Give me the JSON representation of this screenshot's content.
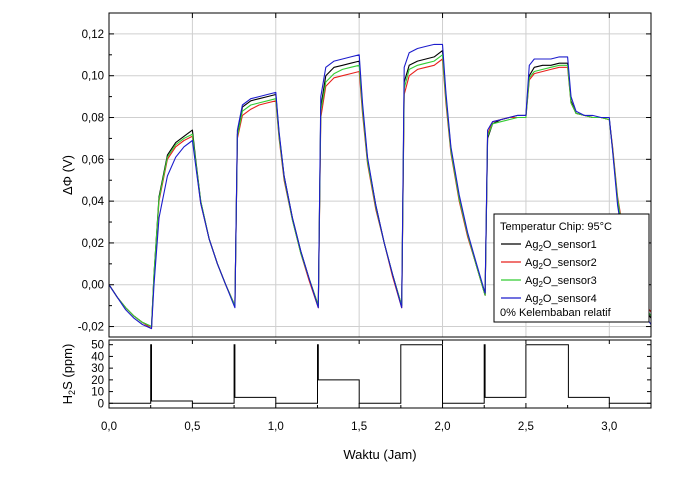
{
  "chart_data": [
    {
      "type": "line",
      "title": "",
      "xlabel": "Waktu (Jam)",
      "ylabel": "ΔΦ (V)",
      "xlim": [
        0,
        3.25
      ],
      "ylim": [
        -0.025,
        0.13
      ],
      "x_ticks": [
        0.0,
        0.5,
        1.0,
        1.5,
        2.0,
        2.5,
        3.0
      ],
      "x_tick_labels": [
        "0,0",
        "0,5",
        "1,0",
        "1,5",
        "2,0",
        "2,5",
        "3,0"
      ],
      "y_ticks": [
        -0.02,
        0.0,
        0.02,
        0.04,
        0.06,
        0.08,
        0.1,
        0.12
      ],
      "y_tick_labels": [
        "-0,02",
        "0,00",
        "0,02",
        "0,04",
        "0,06",
        "0,08",
        "0,10",
        "0,12"
      ],
      "grid": true,
      "legend_position": "bottom-right",
      "legend_title": "Temperatur Chip: 95°C",
      "legend_note": "0% Kelembaban relatif",
      "series": [
        {
          "name": "Ag2O_sensor1",
          "label_base": "Ag",
          "label_sub": "2",
          "label_rest": "O_sensor1",
          "color": "#000000",
          "x": [
            0.0,
            0.05,
            0.1,
            0.15,
            0.2,
            0.255,
            0.27,
            0.3,
            0.35,
            0.4,
            0.45,
            0.5,
            0.52,
            0.55,
            0.6,
            0.65,
            0.7,
            0.755,
            0.77,
            0.8,
            0.85,
            0.9,
            0.95,
            1.0,
            1.02,
            1.05,
            1.1,
            1.15,
            1.2,
            1.255,
            1.27,
            1.3,
            1.35,
            1.4,
            1.45,
            1.5,
            1.52,
            1.55,
            1.6,
            1.65,
            1.7,
            1.755,
            1.77,
            1.8,
            1.85,
            1.9,
            1.95,
            2.0,
            2.02,
            2.05,
            2.1,
            2.15,
            2.2,
            2.255,
            2.27,
            2.3,
            2.35,
            2.4,
            2.45,
            2.5,
            2.52,
            2.55,
            2.6,
            2.65,
            2.7,
            2.75,
            2.77,
            2.8,
            2.85,
            2.9,
            2.95,
            3.0,
            3.02,
            3.05,
            3.1,
            3.15,
            3.2,
            3.25
          ],
          "y": [
            0.0,
            -0.006,
            -0.011,
            -0.015,
            -0.018,
            -0.02,
            0.005,
            0.042,
            0.062,
            0.068,
            0.071,
            0.074,
            0.06,
            0.04,
            0.022,
            0.01,
            0.0,
            -0.01,
            0.072,
            0.085,
            0.088,
            0.089,
            0.09,
            0.091,
            0.072,
            0.052,
            0.032,
            0.016,
            0.003,
            -0.01,
            0.085,
            0.1,
            0.104,
            0.105,
            0.106,
            0.107,
            0.085,
            0.06,
            0.038,
            0.02,
            0.005,
            -0.01,
            0.097,
            0.105,
            0.107,
            0.108,
            0.109,
            0.112,
            0.09,
            0.065,
            0.042,
            0.024,
            0.01,
            -0.005,
            0.07,
            0.077,
            0.079,
            0.08,
            0.081,
            0.081,
            0.1,
            0.104,
            0.105,
            0.105,
            0.106,
            0.106,
            0.088,
            0.082,
            0.081,
            0.08,
            0.08,
            0.079,
            0.065,
            0.04,
            0.015,
            0.0,
            -0.01,
            -0.016
          ]
        },
        {
          "name": "Ag2O_sensor2",
          "label_base": "Ag",
          "label_sub": "2",
          "label_rest": "O_sensor2",
          "color": "#e8201c",
          "x": [
            0.0,
            0.05,
            0.1,
            0.15,
            0.2,
            0.255,
            0.27,
            0.3,
            0.35,
            0.4,
            0.45,
            0.5,
            0.52,
            0.55,
            0.6,
            0.65,
            0.7,
            0.755,
            0.77,
            0.8,
            0.85,
            0.9,
            0.95,
            1.0,
            1.02,
            1.05,
            1.1,
            1.15,
            1.2,
            1.255,
            1.27,
            1.3,
            1.35,
            1.4,
            1.45,
            1.5,
            1.52,
            1.55,
            1.6,
            1.65,
            1.7,
            1.755,
            1.77,
            1.8,
            1.85,
            1.9,
            1.95,
            2.0,
            2.02,
            2.05,
            2.1,
            2.15,
            2.2,
            2.255,
            2.27,
            2.3,
            2.35,
            2.4,
            2.45,
            2.5,
            2.52,
            2.55,
            2.6,
            2.65,
            2.7,
            2.75,
            2.77,
            2.8,
            2.85,
            2.9,
            2.95,
            3.0,
            3.02,
            3.05,
            3.1,
            3.15,
            3.2,
            3.25
          ],
          "y": [
            0.0,
            -0.006,
            -0.011,
            -0.015,
            -0.018,
            -0.021,
            0.004,
            0.04,
            0.06,
            0.066,
            0.069,
            0.071,
            0.058,
            0.039,
            0.022,
            0.01,
            0.0,
            -0.01,
            0.07,
            0.081,
            0.084,
            0.086,
            0.087,
            0.088,
            0.07,
            0.05,
            0.031,
            0.015,
            0.002,
            -0.011,
            0.08,
            0.095,
            0.099,
            0.1,
            0.101,
            0.102,
            0.082,
            0.058,
            0.036,
            0.02,
            0.004,
            -0.011,
            0.091,
            0.1,
            0.103,
            0.104,
            0.105,
            0.108,
            0.087,
            0.063,
            0.04,
            0.023,
            0.01,
            -0.005,
            0.072,
            0.078,
            0.079,
            0.08,
            0.08,
            0.08,
            0.098,
            0.101,
            0.102,
            0.103,
            0.104,
            0.104,
            0.087,
            0.082,
            0.081,
            0.08,
            0.08,
            0.079,
            0.066,
            0.042,
            0.018,
            0.002,
            -0.008,
            -0.013
          ]
        },
        {
          "name": "Ag2O_sensor3",
          "label_base": "Ag",
          "label_sub": "2",
          "label_rest": "O_sensor3",
          "color": "#33cc33",
          "x": [
            0.0,
            0.05,
            0.1,
            0.15,
            0.2,
            0.255,
            0.27,
            0.3,
            0.35,
            0.4,
            0.45,
            0.5,
            0.52,
            0.55,
            0.6,
            0.65,
            0.7,
            0.755,
            0.77,
            0.8,
            0.85,
            0.9,
            0.95,
            1.0,
            1.02,
            1.05,
            1.1,
            1.15,
            1.2,
            1.255,
            1.27,
            1.3,
            1.35,
            1.4,
            1.45,
            1.5,
            1.52,
            1.55,
            1.6,
            1.65,
            1.7,
            1.755,
            1.77,
            1.8,
            1.85,
            1.9,
            1.95,
            2.0,
            2.02,
            2.05,
            2.1,
            2.15,
            2.2,
            2.255,
            2.27,
            2.3,
            2.35,
            2.4,
            2.45,
            2.5,
            2.52,
            2.55,
            2.6,
            2.65,
            2.7,
            2.75,
            2.77,
            2.8,
            2.85,
            2.9,
            2.95,
            3.0,
            3.02,
            3.05,
            3.1,
            3.15,
            3.2,
            3.25
          ],
          "y": [
            0.0,
            -0.006,
            -0.011,
            -0.015,
            -0.018,
            -0.02,
            0.005,
            0.041,
            0.061,
            0.067,
            0.07,
            0.072,
            0.059,
            0.04,
            0.022,
            0.01,
            0.0,
            -0.01,
            0.071,
            0.083,
            0.086,
            0.087,
            0.088,
            0.089,
            0.071,
            0.051,
            0.031,
            0.015,
            0.003,
            -0.01,
            0.083,
            0.097,
            0.101,
            0.103,
            0.104,
            0.105,
            0.084,
            0.059,
            0.037,
            0.02,
            0.005,
            -0.01,
            0.094,
            0.103,
            0.105,
            0.106,
            0.107,
            0.11,
            0.089,
            0.064,
            0.041,
            0.024,
            0.01,
            -0.005,
            0.071,
            0.077,
            0.078,
            0.079,
            0.08,
            0.08,
            0.099,
            0.102,
            0.103,
            0.104,
            0.105,
            0.105,
            0.087,
            0.082,
            0.081,
            0.08,
            0.08,
            0.079,
            0.065,
            0.041,
            0.016,
            0.001,
            -0.009,
            -0.015
          ]
        },
        {
          "name": "Ag2O_sensor4",
          "label_base": "Ag",
          "label_sub": "2",
          "label_rest": "O_sensor4",
          "color": "#1c1ccc",
          "x": [
            0.0,
            0.05,
            0.1,
            0.15,
            0.2,
            0.255,
            0.27,
            0.3,
            0.35,
            0.4,
            0.45,
            0.5,
            0.52,
            0.55,
            0.6,
            0.65,
            0.7,
            0.755,
            0.77,
            0.8,
            0.85,
            0.9,
            0.95,
            1.0,
            1.02,
            1.05,
            1.1,
            1.15,
            1.2,
            1.255,
            1.27,
            1.3,
            1.35,
            1.4,
            1.45,
            1.5,
            1.52,
            1.55,
            1.6,
            1.65,
            1.7,
            1.755,
            1.77,
            1.8,
            1.85,
            1.9,
            1.95,
            2.0,
            2.02,
            2.05,
            2.1,
            2.15,
            2.2,
            2.255,
            2.27,
            2.3,
            2.35,
            2.4,
            2.45,
            2.5,
            2.52,
            2.55,
            2.6,
            2.65,
            2.7,
            2.75,
            2.77,
            2.8,
            2.85,
            2.9,
            2.95,
            3.0,
            3.02,
            3.05,
            3.1,
            3.15,
            3.2,
            3.25
          ],
          "y": [
            0.0,
            -0.006,
            -0.012,
            -0.016,
            -0.019,
            -0.021,
            0.0,
            0.032,
            0.052,
            0.061,
            0.066,
            0.069,
            0.057,
            0.039,
            0.022,
            0.01,
            0.0,
            -0.011,
            0.074,
            0.086,
            0.089,
            0.09,
            0.091,
            0.092,
            0.073,
            0.052,
            0.032,
            0.016,
            0.003,
            -0.011,
            0.09,
            0.104,
            0.107,
            0.108,
            0.109,
            0.11,
            0.087,
            0.061,
            0.038,
            0.02,
            0.005,
            -0.011,
            0.104,
            0.111,
            0.113,
            0.114,
            0.115,
            0.115,
            0.092,
            0.066,
            0.043,
            0.025,
            0.011,
            -0.004,
            0.074,
            0.078,
            0.079,
            0.08,
            0.081,
            0.081,
            0.105,
            0.108,
            0.108,
            0.108,
            0.109,
            0.109,
            0.09,
            0.083,
            0.081,
            0.081,
            0.08,
            0.08,
            0.064,
            0.038,
            0.012,
            -0.003,
            -0.013,
            -0.019
          ]
        }
      ]
    },
    {
      "type": "line",
      "title": "",
      "xlabel": "Waktu (Jam)",
      "ylabel_base": "H",
      "ylabel_sub": "2",
      "ylabel_rest": "S (ppm)",
      "xlim": [
        0,
        3.25
      ],
      "ylim": [
        -4,
        54
      ],
      "y_ticks": [
        0,
        10,
        20,
        30,
        40,
        50
      ],
      "y_tick_labels": [
        "0",
        "10",
        "20",
        "30",
        "40",
        "50"
      ],
      "grid": false,
      "series": [
        {
          "name": "H2S",
          "color": "#000000",
          "x": [
            0.0,
            0.25,
            0.25,
            0.255,
            0.255,
            0.5,
            0.5,
            0.75,
            0.75,
            0.755,
            0.755,
            1.0,
            1.0,
            1.25,
            1.25,
            1.255,
            1.255,
            1.5,
            1.5,
            1.75,
            1.75,
            1.755,
            1.755,
            2.0,
            2.0,
            2.25,
            2.25,
            2.255,
            2.255,
            2.5,
            2.5,
            2.75,
            2.75,
            2.755,
            2.755,
            3.0,
            3.0,
            3.25
          ],
          "y": [
            0,
            0,
            50,
            50,
            2,
            2,
            0,
            0,
            50,
            50,
            5,
            5,
            0,
            0,
            50,
            50,
            20,
            20,
            0,
            0,
            50,
            50,
            50,
            50,
            0,
            0,
            50,
            50,
            5,
            5,
            50,
            50,
            50,
            50,
            5,
            5,
            0,
            0
          ]
        }
      ]
    }
  ]
}
